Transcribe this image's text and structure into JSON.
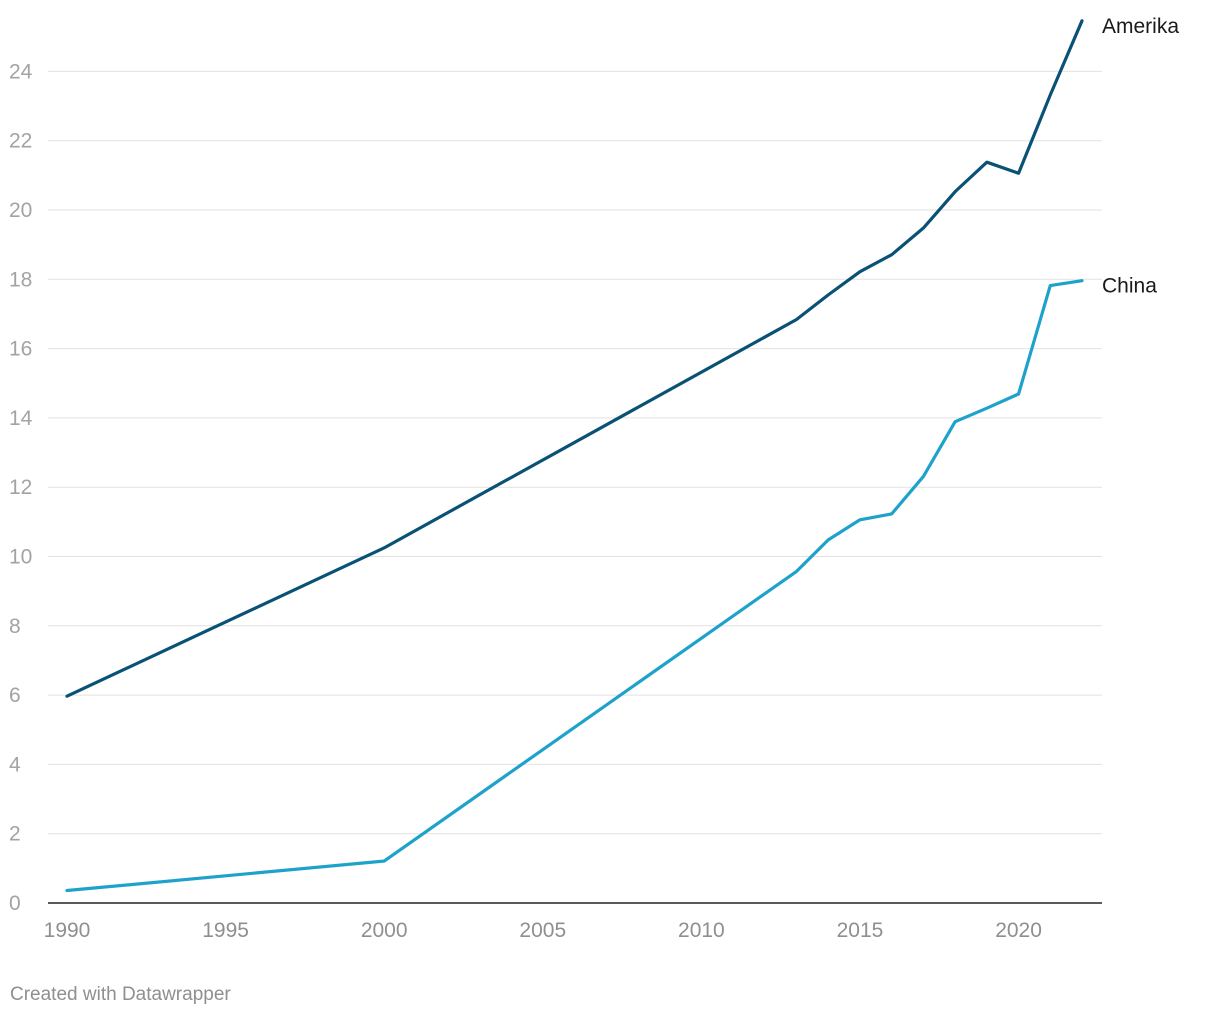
{
  "chart_data": {
    "type": "line",
    "title": "",
    "xlabel": "",
    "ylabel": "",
    "xlim": [
      1990,
      2022
    ],
    "ylim": [
      0,
      24
    ],
    "x_ticks": [
      1990,
      1995,
      2000,
      2005,
      2010,
      2015,
      2020
    ],
    "y_ticks": [
      0,
      2,
      4,
      6,
      8,
      10,
      12,
      14,
      16,
      18,
      20,
      22,
      24
    ],
    "grid": true,
    "legend": "direct-labels-right",
    "series": [
      {
        "name": "Amerika",
        "color": "#0a5275",
        "points": [
          {
            "x": 1990,
            "y": 5.97
          },
          {
            "x": 2000,
            "y": 10.25
          },
          {
            "x": 2013,
            "y": 16.84
          },
          {
            "x": 2014,
            "y": 17.55
          },
          {
            "x": 2015,
            "y": 18.22
          },
          {
            "x": 2016,
            "y": 18.71
          },
          {
            "x": 2017,
            "y": 19.48
          },
          {
            "x": 2018,
            "y": 20.53
          },
          {
            "x": 2019,
            "y": 21.38
          },
          {
            "x": 2020,
            "y": 21.06
          },
          {
            "x": 2021,
            "y": 23.32
          },
          {
            "x": 2022,
            "y": 25.46
          }
        ]
      },
      {
        "name": "China",
        "color": "#1ea2cc",
        "points": [
          {
            "x": 1990,
            "y": 0.36
          },
          {
            "x": 2000,
            "y": 1.21
          },
          {
            "x": 2013,
            "y": 9.57
          },
          {
            "x": 2014,
            "y": 10.48
          },
          {
            "x": 2015,
            "y": 11.06
          },
          {
            "x": 2016,
            "y": 11.23
          },
          {
            "x": 2017,
            "y": 12.31
          },
          {
            "x": 2018,
            "y": 13.89
          },
          {
            "x": 2019,
            "y": 14.28
          },
          {
            "x": 2020,
            "y": 14.69
          },
          {
            "x": 2021,
            "y": 17.82
          },
          {
            "x": 2022,
            "y": 17.96
          }
        ]
      }
    ]
  },
  "footer": {
    "credit": "Created with Datawrapper"
  }
}
